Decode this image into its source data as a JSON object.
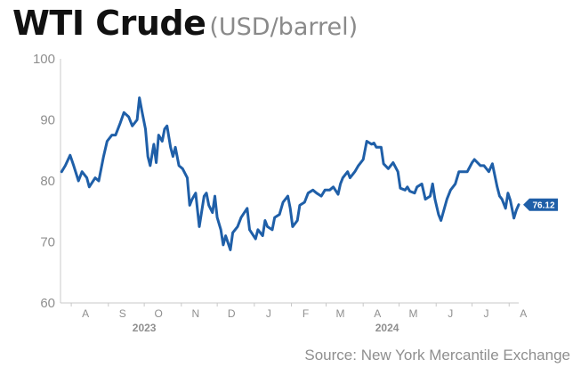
{
  "header": {
    "title": "WTI Crude",
    "subtitle": "(USD/barrel)"
  },
  "source": "Source: New York Mercantile Exchange",
  "chart_data": {
    "type": "line",
    "title": "WTI Crude",
    "ylabel": "USD/barrel",
    "ylim": [
      60,
      100
    ],
    "yticks": [
      60,
      70,
      80,
      90,
      100
    ],
    "grid": false,
    "x_range": [
      "2023-07-23",
      "2024-08-09"
    ],
    "month_ticks": [
      {
        "label": "A",
        "date": "2023-08-01"
      },
      {
        "label": "S",
        "date": "2023-09-01"
      },
      {
        "label": "O",
        "date": "2023-10-01"
      },
      {
        "label": "N",
        "date": "2023-11-01"
      },
      {
        "label": "D",
        "date": "2023-12-01"
      },
      {
        "label": "J",
        "date": "2024-01-01"
      },
      {
        "label": "F",
        "date": "2024-02-01"
      },
      {
        "label": "M",
        "date": "2024-03-01"
      },
      {
        "label": "A",
        "date": "2024-04-01"
      },
      {
        "label": "M",
        "date": "2024-05-01"
      },
      {
        "label": "J",
        "date": "2024-06-01"
      },
      {
        "label": "J",
        "date": "2024-07-01"
      },
      {
        "label": "A",
        "date": "2024-08-01"
      }
    ],
    "year_labels": [
      {
        "label": "2023",
        "date": "2023-10-01"
      },
      {
        "label": "2024",
        "date": "2024-04-21"
      }
    ],
    "last_value_label": "76.12",
    "series": [
      {
        "color": "#1f5fa8",
        "points": [
          [
            "2023-07-24",
            81.5
          ],
          [
            "2023-07-27",
            82.5
          ],
          [
            "2023-07-31",
            84.2
          ],
          [
            "2023-08-03",
            82.5
          ],
          [
            "2023-08-07",
            80.0
          ],
          [
            "2023-08-10",
            81.5
          ],
          [
            "2023-08-14",
            80.5
          ],
          [
            "2023-08-16",
            79.0
          ],
          [
            "2023-08-21",
            80.5
          ],
          [
            "2023-08-24",
            80.0
          ],
          [
            "2023-08-28",
            84.0
          ],
          [
            "2023-08-31",
            86.5
          ],
          [
            "2023-09-04",
            87.5
          ],
          [
            "2023-09-07",
            87.5
          ],
          [
            "2023-09-11",
            89.5
          ],
          [
            "2023-09-14",
            91.2
          ],
          [
            "2023-09-18",
            90.5
          ],
          [
            "2023-09-21",
            89.0
          ],
          [
            "2023-09-25",
            90.0
          ],
          [
            "2023-09-27",
            93.6
          ],
          [
            "2023-09-29",
            91.5
          ],
          [
            "2023-10-02",
            88.5
          ],
          [
            "2023-10-04",
            84.0
          ],
          [
            "2023-10-06",
            82.5
          ],
          [
            "2023-10-09",
            86.0
          ],
          [
            "2023-10-11",
            83.0
          ],
          [
            "2023-10-13",
            87.5
          ],
          [
            "2023-10-16",
            86.5
          ],
          [
            "2023-10-18",
            88.5
          ],
          [
            "2023-10-20",
            89.0
          ],
          [
            "2023-10-23",
            85.5
          ],
          [
            "2023-10-25",
            84.0
          ],
          [
            "2023-10-27",
            85.5
          ],
          [
            "2023-10-30",
            82.5
          ],
          [
            "2023-11-02",
            82.0
          ],
          [
            "2023-11-06",
            80.5
          ],
          [
            "2023-11-08",
            76.0
          ],
          [
            "2023-11-10",
            77.0
          ],
          [
            "2023-11-13",
            78.0
          ],
          [
            "2023-11-16",
            72.5
          ],
          [
            "2023-11-20",
            77.5
          ],
          [
            "2023-11-22",
            78.0
          ],
          [
            "2023-11-24",
            76.0
          ],
          [
            "2023-11-27",
            74.8
          ],
          [
            "2023-11-29",
            77.5
          ],
          [
            "2023-12-01",
            74.0
          ],
          [
            "2023-12-04",
            72.0
          ],
          [
            "2023-12-06",
            69.5
          ],
          [
            "2023-12-08",
            71.0
          ],
          [
            "2023-12-12",
            68.7
          ],
          [
            "2023-12-14",
            71.5
          ],
          [
            "2023-12-18",
            72.5
          ],
          [
            "2023-12-21",
            74.0
          ],
          [
            "2023-12-26",
            75.5
          ],
          [
            "2023-12-28",
            72.0
          ],
          [
            "2024-01-02",
            70.5
          ],
          [
            "2024-01-04",
            72.0
          ],
          [
            "2024-01-08",
            71.0
          ],
          [
            "2024-01-10",
            73.5
          ],
          [
            "2024-01-12",
            72.5
          ],
          [
            "2024-01-16",
            72.0
          ],
          [
            "2024-01-18",
            74.0
          ],
          [
            "2024-01-22",
            74.5
          ],
          [
            "2024-01-25",
            76.5
          ],
          [
            "2024-01-29",
            77.5
          ],
          [
            "2024-01-31",
            75.5
          ],
          [
            "2024-02-02",
            72.5
          ],
          [
            "2024-02-06",
            73.5
          ],
          [
            "2024-02-08",
            76.0
          ],
          [
            "2024-02-12",
            76.5
          ],
          [
            "2024-02-15",
            78.0
          ],
          [
            "2024-02-19",
            78.5
          ],
          [
            "2024-02-22",
            78.0
          ],
          [
            "2024-02-26",
            77.5
          ],
          [
            "2024-02-29",
            78.5
          ],
          [
            "2024-03-04",
            78.5
          ],
          [
            "2024-03-07",
            79.0
          ],
          [
            "2024-03-11",
            77.8
          ],
          [
            "2024-03-13",
            79.5
          ],
          [
            "2024-03-15",
            80.5
          ],
          [
            "2024-03-19",
            81.5
          ],
          [
            "2024-03-21",
            80.5
          ],
          [
            "2024-03-25",
            81.5
          ],
          [
            "2024-03-28",
            82.5
          ],
          [
            "2024-04-01",
            83.5
          ],
          [
            "2024-04-04",
            86.5
          ],
          [
            "2024-04-08",
            86.0
          ],
          [
            "2024-04-10",
            86.2
          ],
          [
            "2024-04-12",
            85.5
          ],
          [
            "2024-04-16",
            85.5
          ],
          [
            "2024-04-18",
            82.8
          ],
          [
            "2024-04-22",
            82.0
          ],
          [
            "2024-04-24",
            82.5
          ],
          [
            "2024-04-26",
            83.0
          ],
          [
            "2024-04-30",
            81.5
          ],
          [
            "2024-05-02",
            78.8
          ],
          [
            "2024-05-06",
            78.5
          ],
          [
            "2024-05-08",
            79.0
          ],
          [
            "2024-05-10",
            78.3
          ],
          [
            "2024-05-14",
            78.0
          ],
          [
            "2024-05-16",
            79.0
          ],
          [
            "2024-05-20",
            79.5
          ],
          [
            "2024-05-23",
            77.0
          ],
          [
            "2024-05-27",
            77.5
          ],
          [
            "2024-05-29",
            79.5
          ],
          [
            "2024-05-31",
            77.0
          ],
          [
            "2024-06-03",
            74.5
          ],
          [
            "2024-06-05",
            73.5
          ],
          [
            "2024-06-10",
            77.0
          ],
          [
            "2024-06-13",
            78.5
          ],
          [
            "2024-06-17",
            79.5
          ],
          [
            "2024-06-20",
            81.5
          ],
          [
            "2024-06-24",
            81.5
          ],
          [
            "2024-06-27",
            81.5
          ],
          [
            "2024-07-01",
            83.0
          ],
          [
            "2024-07-03",
            83.5
          ],
          [
            "2024-07-08",
            82.5
          ],
          [
            "2024-07-11",
            82.5
          ],
          [
            "2024-07-15",
            81.5
          ],
          [
            "2024-07-18",
            82.8
          ],
          [
            "2024-07-22",
            79.0
          ],
          [
            "2024-07-24",
            77.5
          ],
          [
            "2024-07-26",
            77.0
          ],
          [
            "2024-07-29",
            75.5
          ],
          [
            "2024-07-31",
            78.0
          ],
          [
            "2024-08-02",
            76.8
          ],
          [
            "2024-08-05",
            73.9
          ],
          [
            "2024-08-07",
            75.2
          ],
          [
            "2024-08-09",
            76.1
          ]
        ]
      }
    ]
  }
}
